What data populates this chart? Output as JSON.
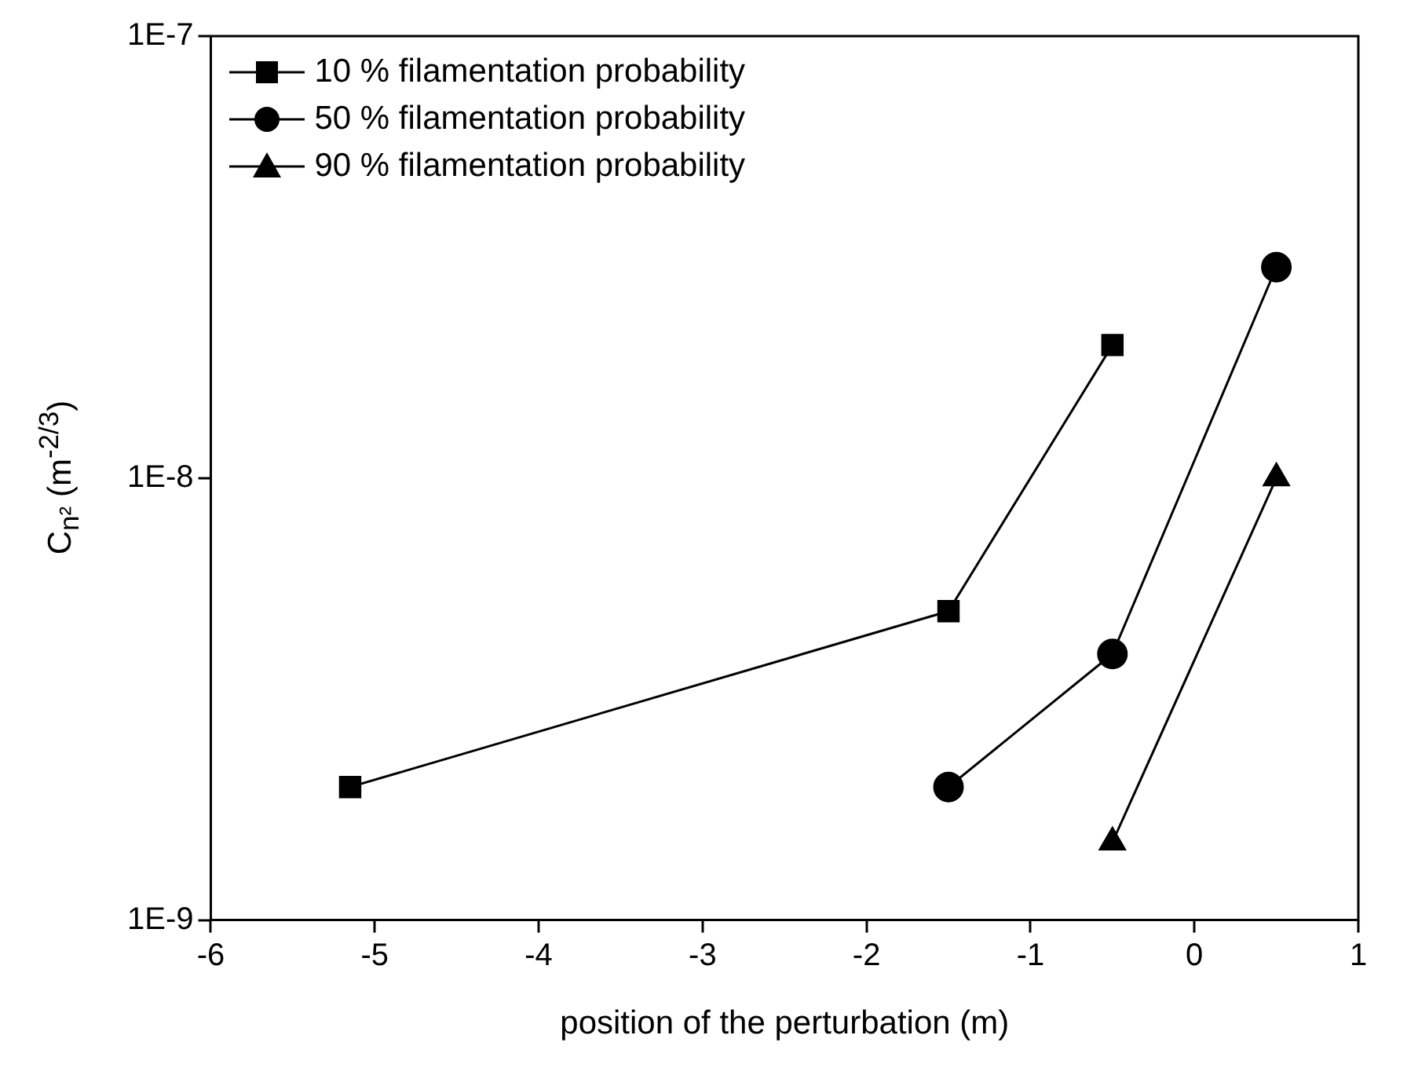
{
  "chart_data": {
    "type": "line",
    "xlabel": "position of the perturbation (m)",
    "ylabel": "C$_{n²}$ (m$^{-2/3}$)",
    "log": "y",
    "xlim": [
      -6,
      1
    ],
    "xticks": [
      -6,
      -5,
      -4,
      -3,
      -2,
      -1,
      0,
      1
    ],
    "ylim": [
      1e-09,
      1e-07
    ],
    "yticks": [
      {
        "value": 1e-09,
        "label": "1E-9"
      },
      {
        "value": 1e-08,
        "label": "1E-8"
      },
      {
        "value": 1e-07,
        "label": "1E-7"
      }
    ],
    "grid": false,
    "legend": "top left",
    "line_style": "solid",
    "series": [
      {
        "name": "10 % filamentation probability",
        "color": "#000000",
        "marker": "square",
        "x": [
          -5.15,
          -1.5,
          -0.5
        ],
        "values": [
          2e-09,
          5e-09,
          2e-08
        ]
      },
      {
        "name": "50 % filamentation probability",
        "color": "#000000",
        "marker": "circle",
        "x": [
          -1.5,
          -0.5,
          0.5
        ],
        "values": [
          2e-09,
          4e-09,
          3e-08
        ]
      },
      {
        "name": "90 % filamentation probability",
        "color": "#000000",
        "marker": "triangle",
        "x": [
          -0.5,
          0.5
        ],
        "values": [
          1.5e-09,
          1e-08
        ]
      }
    ]
  }
}
